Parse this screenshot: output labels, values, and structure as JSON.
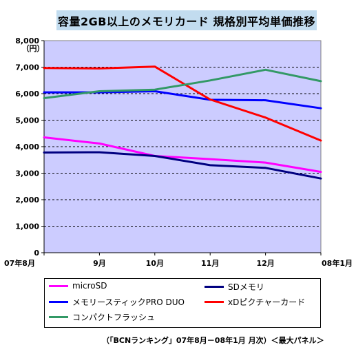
{
  "chart_data": {
    "type": "line",
    "title": "容量2GB以上のメモリカード 規格別平均単価推移",
    "unit_label": "（円）",
    "categories": [
      "07年8月",
      "9月",
      "10月",
      "11月",
      "12月",
      "08年1月"
    ],
    "ylim": [
      0,
      8000
    ],
    "yticks": [
      "0",
      "1,000",
      "2,000",
      "3,000",
      "4,000",
      "5,000",
      "6,000",
      "7,000",
      "8,000"
    ],
    "grid": true,
    "plot_background": "#ccccff",
    "legend_position": "bottom",
    "series": [
      {
        "name": "microSD",
        "color": "#ff00ff",
        "values": [
          4350,
          4120,
          3650,
          3530,
          3400,
          3050
        ]
      },
      {
        "name": "SDメモリ",
        "color": "#000080",
        "values": [
          3780,
          3790,
          3650,
          3300,
          3200,
          2800
        ]
      },
      {
        "name": "メモリースティックPRO DUO",
        "color": "#0000ff",
        "values": [
          6050,
          6050,
          6090,
          5770,
          5750,
          5450
        ]
      },
      {
        "name": "xDピクチャーカード",
        "color": "#ff0000",
        "values": [
          6970,
          6950,
          7020,
          5780,
          5100,
          4230
        ]
      },
      {
        "name": "コンパクトフラッシュ",
        "color": "#339966",
        "values": [
          5830,
          6090,
          6150,
          6500,
          6900,
          6470
        ]
      }
    ],
    "source": "（「BCNランキング」07年8月－08年1月 月次）＜最大パネル＞"
  }
}
